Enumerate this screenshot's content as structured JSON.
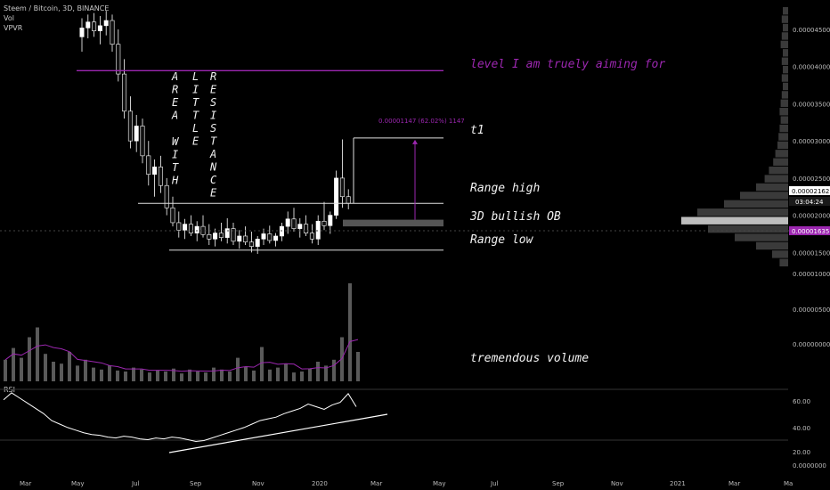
{
  "header": {
    "symbol": "Steem / Bitcoin, 3D, BINANCE",
    "indicator_vol": "Vol",
    "indicator_vpvr": "VPVR",
    "rsi_label": "RSI"
  },
  "colors": {
    "background": "#000000",
    "candle": "#ffffff",
    "purple": "#9c27b0",
    "volume_bar": "#5a5a5a",
    "vpvr": "#3a3a3a"
  },
  "annotations": {
    "aim": "level I am truely aiming for",
    "t1": "t1",
    "range_high": "Range high",
    "ob": "3D bullish OB",
    "range_low": "Range low",
    "volume_note": "tremendous volume",
    "measure": "0.00001147 (62.02%) 1147",
    "vertical_words": [
      "AREA",
      "WITH",
      "LITTLE",
      "RESISTANCE"
    ]
  },
  "price_badges": {
    "current": "0.00002162",
    "countdown": "03:04:24",
    "poc": "0.00001635"
  },
  "chart_data": {
    "type": "candlestick",
    "title": "Steem / Bitcoin, 3D, BINANCE",
    "x_ticks": [
      "Mar",
      "May",
      "Jul",
      "Sep",
      "Nov",
      "2020",
      "Mar",
      "May",
      "Jul",
      "Sep",
      "Nov",
      "2021",
      "Mar",
      "Ma"
    ],
    "price_ticks": [
      "0.00004500",
      "0.00004000",
      "0.00003500",
      "0.00003000",
      "0.00002500",
      "0.00002000",
      "0.00001500",
      "0.00001000",
      "0.00000500",
      "0.00000000"
    ],
    "rsi_ticks": [
      "60.00",
      "40.00",
      "20.00",
      "0.0000000"
    ],
    "levels": {
      "aim": 3.945e-05,
      "t1": 3.04e-05,
      "range_high": 2.16e-05,
      "range_low": 1.53e-05,
      "ob_top": 1.94e-05,
      "ob_bottom": 1.85e-05
    },
    "price_series": [
      {
        "o": 4.4e-05,
        "h": 4.65e-05,
        "l": 4.2e-05,
        "c": 4.52e-05
      },
      {
        "o": 4.52e-05,
        "h": 4.7e-05,
        "l": 4.38e-05,
        "c": 4.6e-05
      },
      {
        "o": 4.6e-05,
        "h": 4.72e-05,
        "l": 4.4e-05,
        "c": 4.48e-05
      },
      {
        "o": 4.48e-05,
        "h": 4.68e-05,
        "l": 4.3e-05,
        "c": 4.55e-05
      },
      {
        "o": 4.55e-05,
        "h": 4.75e-05,
        "l": 4.42e-05,
        "c": 4.62e-05
      },
      {
        "o": 4.62e-05,
        "h": 4.7e-05,
        "l": 4.2e-05,
        "c": 4.3e-05
      },
      {
        "o": 4.3e-05,
        "h": 4.5e-05,
        "l": 3.8e-05,
        "c": 3.9e-05
      },
      {
        "o": 3.9e-05,
        "h": 4.1e-05,
        "l": 3.3e-05,
        "c": 3.4e-05
      },
      {
        "o": 3.4e-05,
        "h": 3.6e-05,
        "l": 2.9e-05,
        "c": 3e-05
      },
      {
        "o": 3e-05,
        "h": 3.35e-05,
        "l": 2.85e-05,
        "c": 3.2e-05
      },
      {
        "o": 3.2e-05,
        "h": 3.3e-05,
        "l": 2.7e-05,
        "c": 2.8e-05
      },
      {
        "o": 2.8e-05,
        "h": 3e-05,
        "l": 2.4e-05,
        "c": 2.55e-05
      },
      {
        "o": 2.55e-05,
        "h": 2.75e-05,
        "l": 2.25e-05,
        "c": 2.65e-05
      },
      {
        "o": 2.65e-05,
        "h": 2.8e-05,
        "l": 2.3e-05,
        "c": 2.4e-05
      },
      {
        "o": 2.4e-05,
        "h": 2.5e-05,
        "l": 2e-05,
        "c": 2.1e-05
      },
      {
        "o": 2.1e-05,
        "h": 2.25e-05,
        "l": 1.85e-05,
        "c": 1.9e-05
      },
      {
        "o": 1.9e-05,
        "h": 2.05e-05,
        "l": 1.7e-05,
        "c": 1.8e-05
      },
      {
        "o": 1.8e-05,
        "h": 1.95e-05,
        "l": 1.68e-05,
        "c": 1.88e-05
      },
      {
        "o": 1.88e-05,
        "h": 2e-05,
        "l": 1.72e-05,
        "c": 1.76e-05
      },
      {
        "o": 1.76e-05,
        "h": 1.92e-05,
        "l": 1.65e-05,
        "c": 1.85e-05
      },
      {
        "o": 1.85e-05,
        "h": 2e-05,
        "l": 1.7e-05,
        "c": 1.74e-05
      },
      {
        "o": 1.74e-05,
        "h": 1.88e-05,
        "l": 1.6e-05,
        "c": 1.68e-05
      },
      {
        "o": 1.68e-05,
        "h": 1.82e-05,
        "l": 1.58e-05,
        "c": 1.76e-05
      },
      {
        "o": 1.76e-05,
        "h": 1.9e-05,
        "l": 1.65e-05,
        "c": 1.7e-05
      },
      {
        "o": 1.7e-05,
        "h": 1.96e-05,
        "l": 1.62e-05,
        "c": 1.82e-05
      },
      {
        "o": 1.82e-05,
        "h": 1.9e-05,
        "l": 1.6e-05,
        "c": 1.65e-05
      },
      {
        "o": 1.65e-05,
        "h": 1.8e-05,
        "l": 1.55e-05,
        "c": 1.72e-05
      },
      {
        "o": 1.72e-05,
        "h": 1.85e-05,
        "l": 1.6e-05,
        "c": 1.64e-05
      },
      {
        "o": 1.64e-05,
        "h": 1.78e-05,
        "l": 1.5e-05,
        "c": 1.58e-05
      },
      {
        "o": 1.58e-05,
        "h": 1.72e-05,
        "l": 1.48e-05,
        "c": 1.68e-05
      },
      {
        "o": 1.68e-05,
        "h": 1.82e-05,
        "l": 1.6e-05,
        "c": 1.75e-05
      },
      {
        "o": 1.75e-05,
        "h": 1.86e-05,
        "l": 1.62e-05,
        "c": 1.66e-05
      },
      {
        "o": 1.66e-05,
        "h": 1.76e-05,
        "l": 1.58e-05,
        "c": 1.72e-05
      },
      {
        "o": 1.72e-05,
        "h": 1.9e-05,
        "l": 1.65e-05,
        "c": 1.85e-05
      },
      {
        "o": 1.85e-05,
        "h": 2.05e-05,
        "l": 1.75e-05,
        "c": 1.95e-05
      },
      {
        "o": 1.95e-05,
        "h": 2.1e-05,
        "l": 1.78e-05,
        "c": 1.82e-05
      },
      {
        "o": 1.82e-05,
        "h": 1.96e-05,
        "l": 1.7e-05,
        "c": 1.88e-05
      },
      {
        "o": 1.88e-05,
        "h": 2e-05,
        "l": 1.72e-05,
        "c": 1.76e-05
      },
      {
        "o": 1.76e-05,
        "h": 1.88e-05,
        "l": 1.62e-05,
        "c": 1.68e-05
      },
      {
        "o": 1.68e-05,
        "h": 2e-05,
        "l": 1.6e-05,
        "c": 1.92e-05
      },
      {
        "o": 1.92e-05,
        "h": 2.18e-05,
        "l": 1.8e-05,
        "c": 1.86e-05
      },
      {
        "o": 1.86e-05,
        "h": 2.05e-05,
        "l": 1.75e-05,
        "c": 2e-05
      },
      {
        "o": 2e-05,
        "h": 2.6e-05,
        "l": 1.95e-05,
        "c": 2.5e-05
      },
      {
        "o": 2.5e-05,
        "h": 3.02e-05,
        "l": 2.1e-05,
        "c": 2.25e-05
      },
      {
        "o": 2.25e-05,
        "h": 2.35e-05,
        "l": 2.08e-05,
        "c": 2.16e-05
      }
    ],
    "volume": [
      0.22,
      0.34,
      0.24,
      0.45,
      0.55,
      0.28,
      0.2,
      0.18,
      0.3,
      0.16,
      0.22,
      0.14,
      0.12,
      0.16,
      0.11,
      0.1,
      0.14,
      0.12,
      0.09,
      0.11,
      0.1,
      0.13,
      0.08,
      0.12,
      0.1,
      0.09,
      0.14,
      0.12,
      0.1,
      0.24,
      0.15,
      0.11,
      0.35,
      0.12,
      0.14,
      0.18,
      0.09,
      0.1,
      0.13,
      0.2,
      0.16,
      0.22,
      0.45,
      1.0,
      0.3
    ],
    "volume_ticks": [
      "0.0000000"
    ],
    "rsi": [
      68,
      76,
      70,
      64,
      58,
      52,
      44,
      40,
      36,
      33,
      30,
      28,
      27,
      25,
      24,
      26,
      25,
      23,
      22,
      24,
      23,
      25,
      24,
      22,
      20,
      21,
      24,
      27,
      30,
      33,
      36,
      40,
      44,
      46,
      48,
      52,
      55,
      58,
      63,
      60,
      57,
      62,
      65,
      75,
      60
    ],
    "rsi_ylim": [
      0,
      80
    ],
    "price_ylim": [
      1.3e-05,
      4.8e-05
    ],
    "volume_profile": [
      0.05,
      0.06,
      0.05,
      0.06,
      0.07,
      0.05,
      0.06,
      0.05,
      0.06,
      0.05,
      0.06,
      0.07,
      0.08,
      0.07,
      0.08,
      0.09,
      0.1,
      0.12,
      0.14,
      0.18,
      0.22,
      0.3,
      0.45,
      0.6,
      0.85,
      1.0,
      0.75,
      0.5,
      0.3,
      0.15,
      0.08
    ]
  }
}
